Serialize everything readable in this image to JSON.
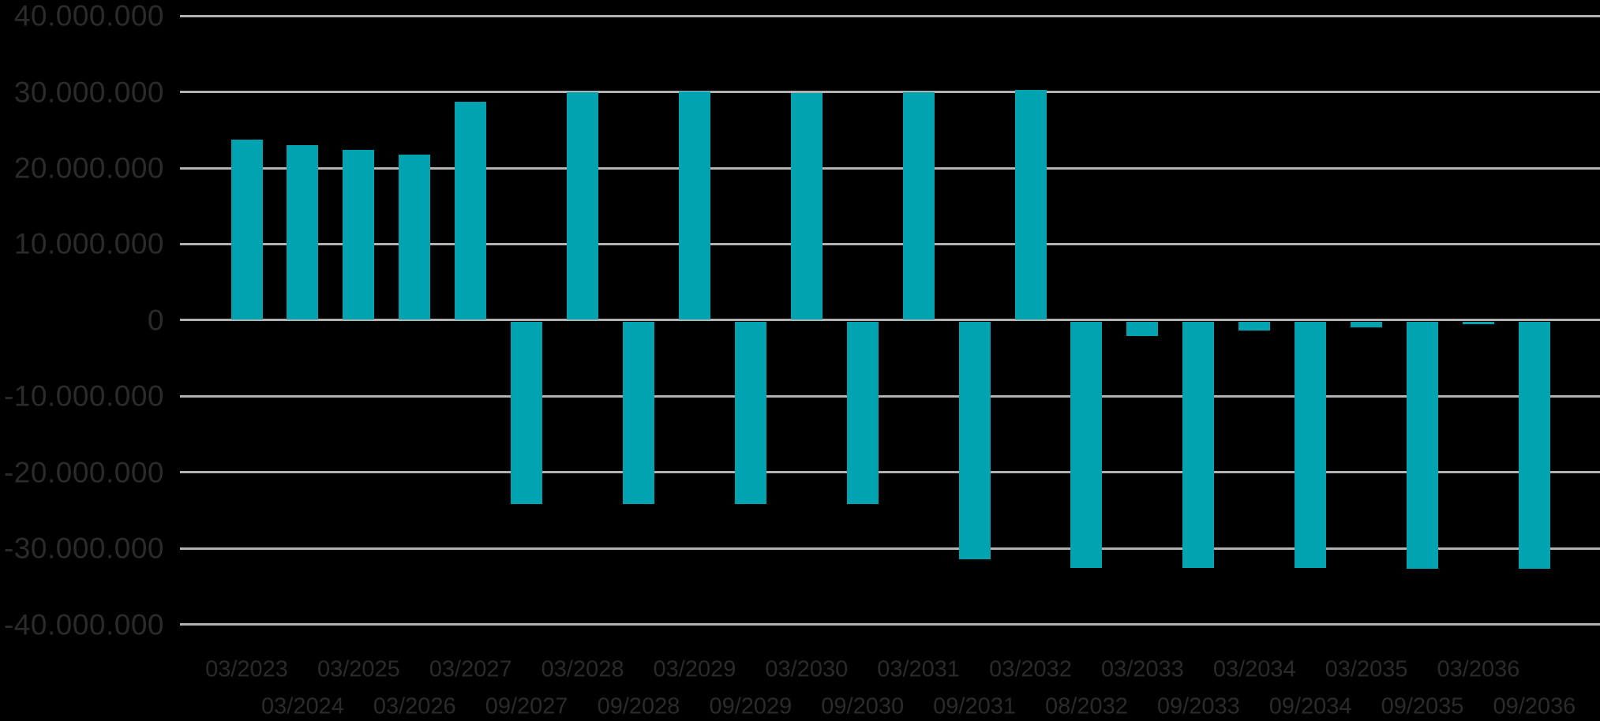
{
  "chart_data": {
    "type": "bar",
    "title": "",
    "xlabel": "",
    "ylabel": "",
    "categories": [
      "03/2023",
      "03/2024",
      "03/2025",
      "03/2026",
      "03/2027",
      "09/2027",
      "03/2028",
      "09/2028",
      "03/2029",
      "09/2029",
      "03/2030",
      "09/2030",
      "03/2031",
      "09/2031",
      "03/2032",
      "08/2032",
      "03/2033",
      "09/2033",
      "03/2034",
      "09/2034",
      "03/2035",
      "09/2035",
      "03/2036",
      "09/2036"
    ],
    "values": [
      23600000,
      22900000,
      22300000,
      21700000,
      28600000,
      -24000000,
      29900000,
      -24000000,
      30000000,
      -24000000,
      29800000,
      -24000000,
      29900000,
      -31300000,
      30200000,
      -32400000,
      -1900000,
      -32400000,
      -1200000,
      -32400000,
      -800000,
      -32500000,
      -400000,
      -32500000
    ],
    "ylim": [
      -40000000,
      40000000
    ],
    "yticks": [
      {
        "value": 40000000,
        "label": "40.000.000"
      },
      {
        "value": 30000000,
        "label": "30.000.000"
      },
      {
        "value": 20000000,
        "label": "20.000.000"
      },
      {
        "value": 10000000,
        "label": "10.000.000"
      },
      {
        "value": 0,
        "label": "0"
      },
      {
        "value": -10000000,
        "label": "-10.000.000"
      },
      {
        "value": -20000000,
        "label": "-20.000.000"
      },
      {
        "value": -30000000,
        "label": "-30.000.000"
      },
      {
        "value": -40000000,
        "label": "-40.000.000"
      }
    ],
    "grid": true,
    "legend": false,
    "x_label_layout": "alternating-two-rows"
  },
  "style": {
    "background_color": "#000000",
    "bar_color": "#00a4b0",
    "grid_color": "#b2b2b2",
    "label_color": "#2b2b2b"
  }
}
